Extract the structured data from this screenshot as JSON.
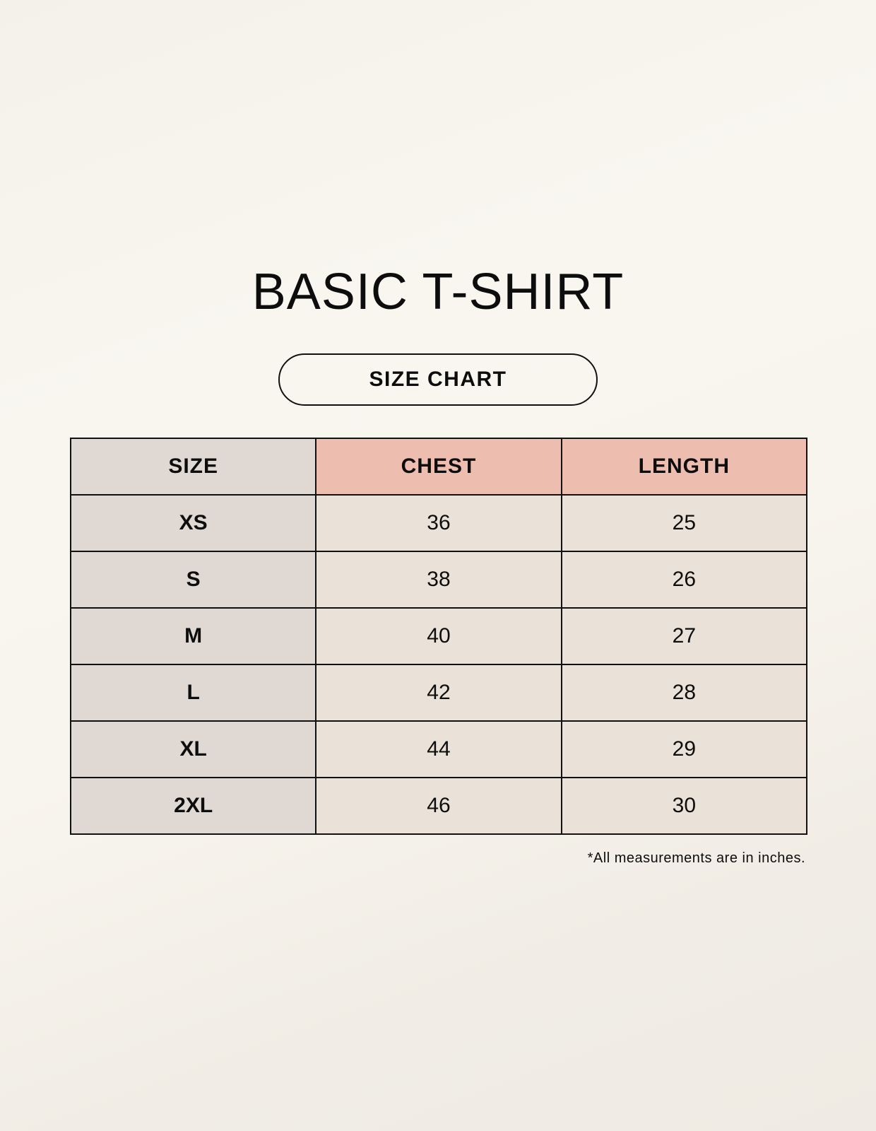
{
  "title": "BASIC T-SHIRT",
  "subtitle": "SIZE CHART",
  "table": {
    "headers": [
      "SIZE",
      "CHEST",
      "LENGTH"
    ],
    "rows": [
      [
        "XS",
        "36",
        "25"
      ],
      [
        "S",
        "38",
        "26"
      ],
      [
        "M",
        "40",
        "27"
      ],
      [
        "L",
        "42",
        "28"
      ],
      [
        "XL",
        "44",
        "29"
      ],
      [
        "2XL",
        "46",
        "30"
      ]
    ]
  },
  "note": "*All measurements are in inches.",
  "colors": {
    "size_column": "#e0d8d2",
    "header_accent": "#edbdaf",
    "cell": "#eae2d8"
  }
}
